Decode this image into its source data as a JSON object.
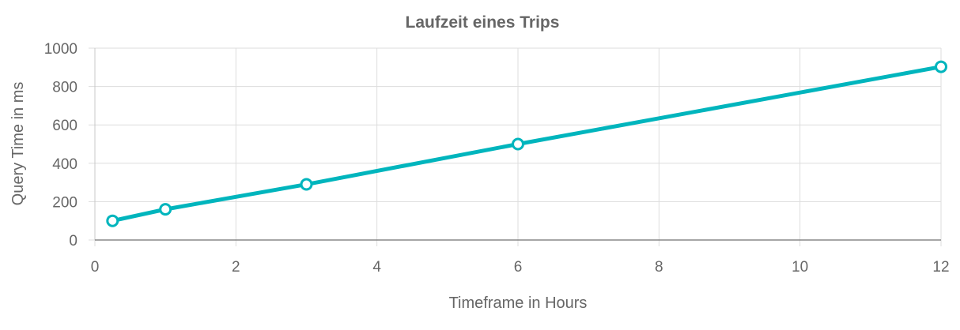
{
  "chart_data": {
    "type": "line",
    "title": "Laufzeit eines Trips",
    "xlabel": "Timeframe in Hours",
    "ylabel": "Query Time in ms",
    "xlim": [
      0,
      12
    ],
    "ylim": [
      0,
      1000
    ],
    "xticks": [
      0,
      2,
      4,
      6,
      8,
      10,
      12
    ],
    "yticks": [
      0,
      200,
      400,
      600,
      800,
      1000
    ],
    "grid": true,
    "legend": "none",
    "series": [
      {
        "color": "#00b5bd",
        "points": [
          {
            "x": 0.25,
            "y": 100
          },
          {
            "x": 1,
            "y": 160
          },
          {
            "x": 3,
            "y": 290
          },
          {
            "x": 6,
            "y": 500
          },
          {
            "x": 12,
            "y": 903
          }
        ]
      }
    ]
  }
}
